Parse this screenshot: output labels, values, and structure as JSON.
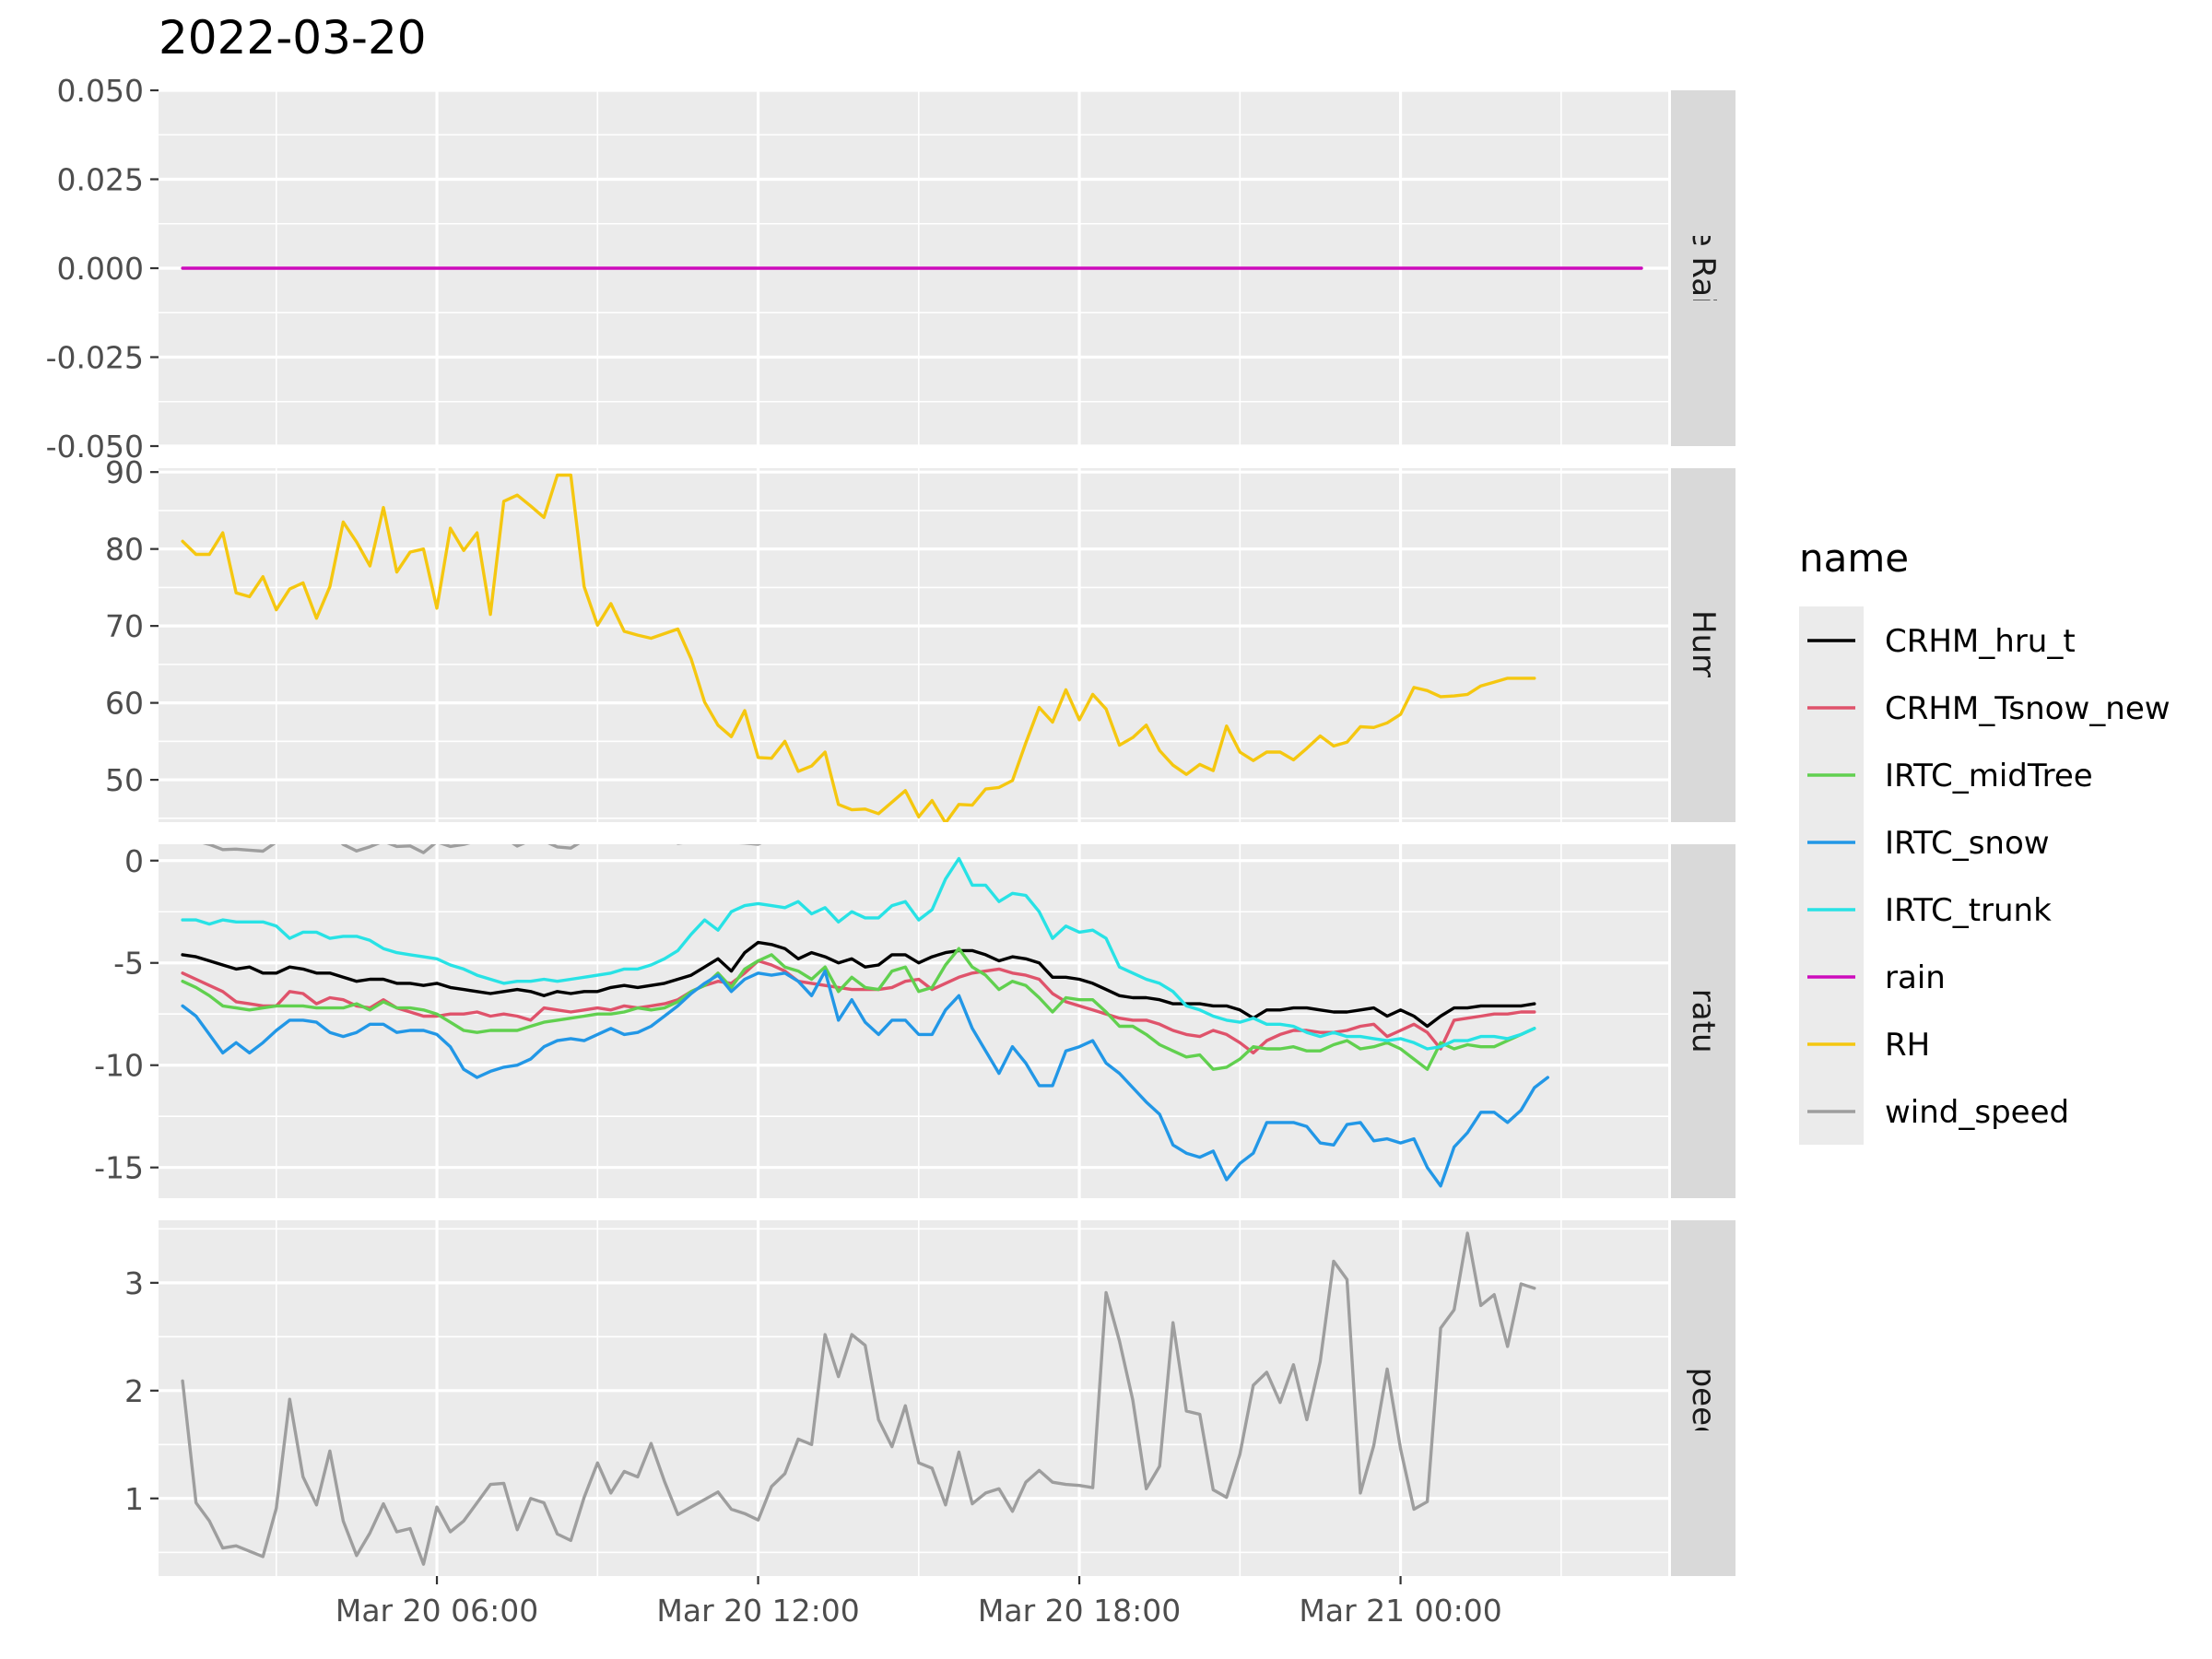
{
  "chart_data": {
    "type": "line",
    "title": "2022-03-20",
    "x_ticks": [
      "Mar 20 06:00",
      "Mar 20 12:00",
      "Mar 20 18:00",
      "Mar 21 00:00"
    ],
    "x_tick_hours": [
      6,
      12,
      18,
      24
    ],
    "x_minor_hours": [
      3,
      9,
      15,
      21,
      27
    ],
    "xlim_hours": [
      0.8,
      29.0
    ],
    "x_unit": "hours since 2022-03-20 00:00",
    "legend": {
      "title": "name",
      "position": "right",
      "entries": [
        "CRHM_hru_t",
        "CRHM_Tsnow_new",
        "IRTC_midTree",
        "IRTC_snow",
        "IRTC_trunk",
        "rain",
        "RH",
        "wind_speed"
      ]
    },
    "colors": {
      "CRHM_hru_t": "#000000",
      "CRHM_Tsnow_new": "#DF536B",
      "IRTC_midTree": "#61D04F",
      "IRTC_snow": "#2297E6",
      "IRTC_trunk": "#28E2E5",
      "rain": "#CD0BBC",
      "RH": "#F5C710",
      "wind_speed": "#9E9E9E"
    },
    "panels": [
      {
        "strip": "Cumulative Rainfall (mm)",
        "ylim": [
          -0.05,
          0.05
        ],
        "y_ticks": [
          -0.05,
          -0.025,
          0,
          0.025,
          0.05
        ],
        "y_tick_labels": [
          "-0.050",
          "-0.025",
          "0.000",
          "0.025",
          "0.050"
        ],
        "series": [
          {
            "name": "rain",
            "x_start": 1.25,
            "x_step": 0.25,
            "values": [
              0,
              0
            ]
          }
        ]
      },
      {
        "strip": "Relative Humidity (%)",
        "ylim": [
          44.5,
          90.5
        ],
        "y_ticks": [
          50,
          60,
          70,
          80,
          90
        ],
        "y_tick_labels": [
          "50",
          "60",
          "70",
          "80",
          "90"
        ],
        "series": [
          {
            "name": "RH",
            "x_start": 1.25,
            "x_step": 0.25,
            "values": [
              81,
              79.3,
              79.3,
              82.1,
              74.3,
              73.8,
              76.4,
              72.1,
              74.8,
              75.6,
              71,
              75.1,
              83.5,
              80.9,
              77.8,
              85.4,
              77,
              79.6,
              80,
              72.3,
              82.7,
              79.8,
              82.1,
              71.5,
              86.2,
              87,
              85.6,
              84.1,
              89.6,
              89.6,
              75.1,
              70.1,
              72.9,
              69.3,
              68.8,
              68.4,
              69,
              69.6,
              65.7,
              60.1,
              57.1,
              55.6,
              59,
              52.9,
              52.8,
              55,
              51.1,
              51.8,
              53.6,
              46.8,
              46.1,
              46.2,
              45.6,
              47.1,
              48.6,
              45.2,
              47.3,
              44.4,
              46.8,
              46.7,
              48.8,
              49,
              49.9,
              54.8,
              59.4,
              57.5,
              61.7,
              57.8,
              61.1,
              59.2,
              54.5,
              55.5,
              57.1,
              53.8,
              51.9,
              50.7,
              52,
              51.2,
              57,
              53.6,
              52.5,
              53.6,
              53.6,
              52.6,
              54.1,
              55.7,
              54.4,
              54.9,
              56.9,
              56.8,
              57.4,
              58.5,
              62,
              61.6,
              60.8,
              60.9,
              61.1,
              62.2,
              62.7,
              63.2,
              63.2,
              63.2
            ]
          }
        ]
      },
      {
        "strip": "Temperature (°C)",
        "ylim": [
          -16.5,
          0.8
        ],
        "y_ticks": [
          -15,
          -10,
          -5,
          0
        ],
        "y_tick_labels": [
          "-15",
          "-10",
          "-5",
          "0"
        ],
        "series": [
          {
            "name": "CRHM_hru_t",
            "x_start": 1.25,
            "x_step": 0.25,
            "values": [
              -4.6,
              -4.7,
              -4.9,
              -5.1,
              -5.3,
              -5.2,
              -5.5,
              -5.5,
              -5.2,
              -5.3,
              -5.5,
              -5.5,
              -5.7,
              -5.9,
              -5.8,
              -5.8,
              -6,
              -6,
              -6.1,
              -6,
              -6.2,
              -6.3,
              -6.4,
              -6.5,
              -6.4,
              -6.3,
              -6.4,
              -6.6,
              -6.4,
              -6.5,
              -6.4,
              -6.4,
              -6.2,
              -6.1,
              -6.2,
              -6.1,
              -6,
              -5.8,
              -5.6,
              -5.2,
              -4.8,
              -5.4,
              -4.5,
              -4,
              -4.1,
              -4.3,
              -4.8,
              -4.5,
              -4.7,
              -5,
              -4.8,
              -5.2,
              -5.1,
              -4.6,
              -4.6,
              -5,
              -4.7,
              -4.5,
              -4.4,
              -4.4,
              -4.6,
              -4.9,
              -4.7,
              -4.8,
              -5,
              -5.7,
              -5.7,
              -5.8,
              -6,
              -6.3,
              -6.6,
              -6.7,
              -6.7,
              -6.8,
              -7,
              -7,
              -7,
              -7.1,
              -7.1,
              -7.3,
              -7.7,
              -7.3,
              -7.3,
              -7.2,
              -7.2,
              -7.3,
              -7.4,
              -7.4,
              -7.3,
              -7.2,
              -7.6,
              -7.3,
              -7.6,
              -8.1,
              -7.6,
              -7.2,
              -7.2,
              -7.1,
              -7.1,
              -7.1,
              -7.1,
              -7
            ]
          },
          {
            "name": "CRHM_Tsnow_new",
            "x_start": 1.25,
            "x_step": 0.25,
            "values": [
              -5.5,
              -5.8,
              -6.1,
              -6.4,
              -6.9,
              -7,
              -7.1,
              -7.1,
              -6.4,
              -6.5,
              -7,
              -6.7,
              -6.8,
              -7.1,
              -7.2,
              -6.8,
              -7.2,
              -7.4,
              -7.6,
              -7.6,
              -7.5,
              -7.5,
              -7.4,
              -7.6,
              -7.5,
              -7.6,
              -7.8,
              -7.2,
              -7.3,
              -7.4,
              -7.3,
              -7.2,
              -7.3,
              -7.1,
              -7.2,
              -7.1,
              -7,
              -6.8,
              -6.4,
              -6.1,
              -5.9,
              -6,
              -5.5,
              -4.9,
              -5.1,
              -5.4,
              -5.9,
              -6,
              -6.1,
              -6.2,
              -6.3,
              -6.3,
              -6.3,
              -6.2,
              -5.9,
              -5.8,
              -6.3,
              -6,
              -5.7,
              -5.5,
              -5.4,
              -5.3,
              -5.5,
              -5.6,
              -5.8,
              -6.5,
              -6.9,
              -7.1,
              -7.3,
              -7.5,
              -7.7,
              -7.8,
              -7.8,
              -8,
              -8.3,
              -8.5,
              -8.6,
              -8.3,
              -8.5,
              -8.9,
              -9.4,
              -8.8,
              -8.5,
              -8.3,
              -8.3,
              -8.4,
              -8.4,
              -8.3,
              -8.1,
              -8,
              -8.6,
              -8.3,
              -8,
              -8.4,
              -9.2,
              -7.8,
              -7.7,
              -7.6,
              -7.5,
              -7.5,
              -7.4,
              -7.4
            ]
          },
          {
            "name": "IRTC_midTree",
            "x_start": 1.25,
            "x_step": 0.25,
            "values": [
              -5.9,
              -6.2,
              -6.6,
              -7.1,
              -7.2,
              -7.3,
              -7.2,
              -7.1,
              -7.1,
              -7.1,
              -7.2,
              -7.2,
              -7.2,
              -7,
              -7.3,
              -6.9,
              -7.2,
              -7.2,
              -7.3,
              -7.5,
              -7.9,
              -8.3,
              -8.4,
              -8.3,
              -8.3,
              -8.3,
              -8.1,
              -7.9,
              -7.8,
              -7.7,
              -7.6,
              -7.5,
              -7.5,
              -7.4,
              -7.2,
              -7.3,
              -7.2,
              -6.9,
              -6.4,
              -6.1,
              -5.5,
              -6.2,
              -5.3,
              -4.9,
              -4.6,
              -5.2,
              -5.4,
              -5.8,
              -5.2,
              -6.4,
              -5.7,
              -6.2,
              -6.3,
              -5.4,
              -5.2,
              -6.4,
              -6.2,
              -5.1,
              -4.3,
              -5.2,
              -5.6,
              -6.3,
              -5.9,
              -6.1,
              -6.7,
              -7.4,
              -6.7,
              -6.8,
              -6.8,
              -7.4,
              -8.1,
              -8.1,
              -8.5,
              -9,
              -9.3,
              -9.6,
              -9.5,
              -10.2,
              -10.1,
              -9.7,
              -9.1,
              -9.2,
              -9.2,
              -9.1,
              -9.3,
              -9.3,
              -9,
              -8.8,
              -9.2,
              -9.1,
              -8.9,
              -9.2,
              -9.7,
              -10.2,
              -8.9,
              -9.2,
              -9,
              -9.1,
              -9.1,
              -8.8,
              -8.5,
              -8.2
            ]
          },
          {
            "name": "IRTC_snow",
            "x_start": 1.25,
            "x_step": 0.25,
            "values": [
              -7.1,
              -7.6,
              -8.5,
              -9.4,
              -8.9,
              -9.4,
              -8.9,
              -8.3,
              -7.8,
              -7.8,
              -7.9,
              -8.4,
              -8.6,
              -8.4,
              -8,
              -8,
              -8.4,
              -8.3,
              -8.3,
              -8.5,
              -9.1,
              -10.2,
              -10.6,
              -10.3,
              -10.1,
              -10,
              -9.7,
              -9.1,
              -8.8,
              -8.7,
              -8.8,
              -8.5,
              -8.2,
              -8.5,
              -8.4,
              -8.1,
              -7.6,
              -7.1,
              -6.5,
              -6,
              -5.6,
              -6.4,
              -5.8,
              -5.5,
              -5.6,
              -5.5,
              -5.9,
              -6.6,
              -5.4,
              -7.8,
              -6.8,
              -7.9,
              -8.5,
              -7.8,
              -7.8,
              -8.5,
              -8.5,
              -7.3,
              -6.6,
              -8.2,
              -9.3,
              -10.4,
              -9.1,
              -9.9,
              -11,
              -11,
              -9.3,
              -9.1,
              -8.8,
              -9.9,
              -10.4,
              -11.1,
              -11.8,
              -12.4,
              -13.9,
              -14.3,
              -14.5,
              -14.2,
              -15.6,
              -14.8,
              -14.3,
              -12.8,
              -12.8,
              -12.8,
              -13,
              -13.8,
              -13.9,
              -12.9,
              -12.8,
              -13.7,
              -13.6,
              -13.8,
              -13.6,
              -15,
              -15.9,
              -14,
              -13.3,
              -12.3,
              -12.3,
              -12.8,
              -12.2,
              -11.1,
              -10.6
            ]
          },
          {
            "name": "IRTC_trunk",
            "x_start": 1.25,
            "x_step": 0.25,
            "values": [
              -2.9,
              -2.9,
              -3.1,
              -2.9,
              -3,
              -3,
              -3,
              -3.2,
              -3.8,
              -3.5,
              -3.5,
              -3.8,
              -3.7,
              -3.7,
              -3.9,
              -4.3,
              -4.5,
              -4.6,
              -4.7,
              -4.8,
              -5.1,
              -5.3,
              -5.6,
              -5.8,
              -6,
              -5.9,
              -5.9,
              -5.8,
              -5.9,
              -5.8,
              -5.7,
              -5.6,
              -5.5,
              -5.3,
              -5.3,
              -5.1,
              -4.8,
              -4.4,
              -3.6,
              -2.9,
              -3.4,
              -2.5,
              -2.2,
              -2.1,
              -2.2,
              -2.3,
              -2,
              -2.6,
              -2.3,
              -3,
              -2.5,
              -2.8,
              -2.8,
              -2.2,
              -2,
              -2.9,
              -2.4,
              -0.9,
              0.1,
              -1.2,
              -1.2,
              -2,
              -1.6,
              -1.7,
              -2.5,
              -3.8,
              -3.2,
              -3.5,
              -3.4,
              -3.8,
              -5.2,
              -5.5,
              -5.8,
              -6,
              -6.4,
              -7.1,
              -7.3,
              -7.6,
              -7.8,
              -7.9,
              -7.7,
              -8,
              -8,
              -8.1,
              -8.4,
              -8.6,
              -8.4,
              -8.6,
              -8.6,
              -8.7,
              -8.8,
              -8.7,
              -8.9,
              -9.2,
              -9.1,
              -8.8,
              -8.8,
              -8.6,
              -8.6,
              -8.7,
              -8.5,
              -8.2
            ]
          },
          {
            "name": "wind_speed",
            "x_start": 1.25,
            "x_step": 0.25,
            "values": [
              2.09,
              0.96,
              0.79,
              0.54,
              0.56,
              0.51,
              0.46,
              0.91,
              1.92,
              1.2,
              0.94,
              1.44,
              0.79,
              0.47,
              0.68,
              0.95,
              0.69,
              0.72,
              0.39,
              0.92,
              0.69,
              0.79,
              0.96,
              1.13,
              1.14,
              0.71,
              1,
              0.96,
              0.67,
              0.61,
              1.01,
              1.33,
              1.05,
              1.25,
              1.2,
              1.51,
              1.16,
              0.85,
              0.92,
              0.99,
              1.06,
              0.9,
              0.86,
              0.8,
              1.11,
              1.23,
              1.55,
              1.5,
              2.52,
              2.13,
              2.52,
              2.42,
              1.73,
              1.48,
              1.86,
              1.33,
              1.28,
              0.94,
              1.43,
              0.95,
              1.05,
              1.09,
              0.88,
              1.15,
              1.26,
              1.15,
              1.13,
              1.12,
              1.1,
              2.91,
              2.46,
              1.91,
              1.09,
              1.3,
              2.63,
              1.81,
              1.78,
              1.08,
              1.01,
              1.41,
              2.05,
              2.17,
              1.89,
              2.24,
              1.73,
              2.27,
              3.2,
              3.03,
              1.05,
              1.49,
              2.2,
              1.46,
              0.9,
              0.97,
              2.58,
              2.75,
              3.46,
              2.79,
              2.89,
              2.41,
              2.99,
              2.95
            ]
          }
        ]
      },
      {
        "strip": "Wind Speed (m/s)",
        "ylim": [
          0.28,
          3.58
        ],
        "y_ticks": [
          1,
          2,
          3
        ],
        "y_tick_labels": [
          "1",
          "2",
          "3"
        ],
        "series_ref": "wind_speed"
      }
    ]
  }
}
